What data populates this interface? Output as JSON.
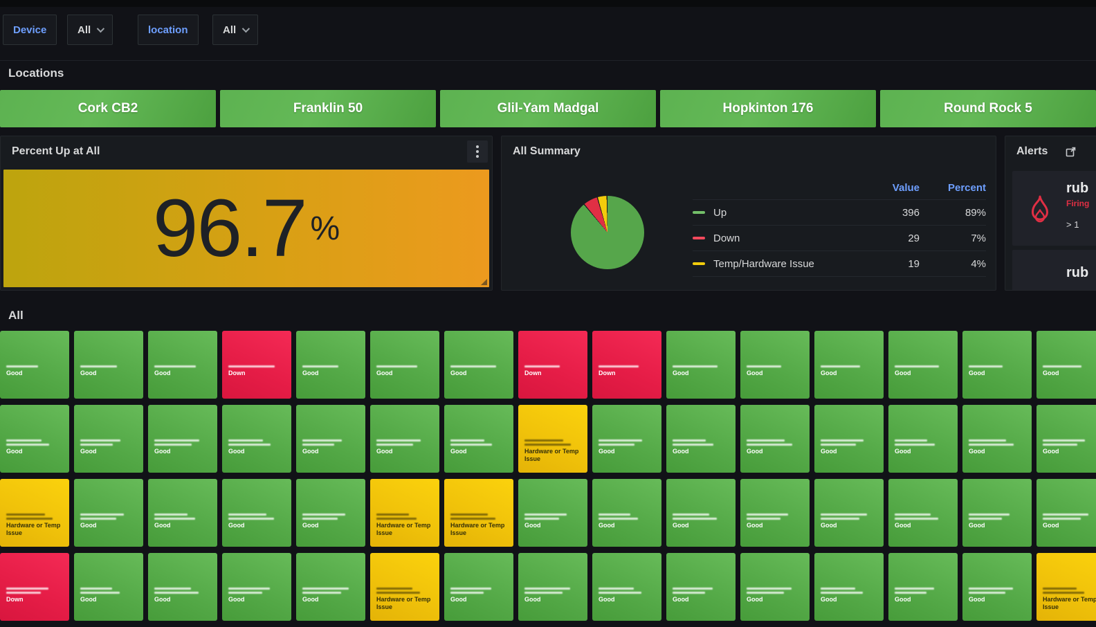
{
  "variables": {
    "device": {
      "label": "Device",
      "value": "All"
    },
    "location": {
      "label": "location",
      "value": "All"
    }
  },
  "sections": {
    "locations_title": "Locations",
    "all_title": "All"
  },
  "location_buttons": [
    "Cork CB2",
    "Franklin 50",
    "Glil-Yam Madgal",
    "Hopkinton 176",
    "Round Rock 5"
  ],
  "panels": {
    "percent_up": {
      "title": "Percent Up at All",
      "value": "96.7",
      "unit": "%"
    },
    "summary": {
      "title": "All Summary",
      "columns": {
        "value": "Value",
        "percent": "Percent"
      },
      "rows": [
        {
          "label": "Up",
          "value": "396",
          "percent": "89%",
          "color": "#73bf69"
        },
        {
          "label": "Down",
          "value": "29",
          "percent": "7%",
          "color": "#f2495c"
        },
        {
          "label": "Temp/Hardware Issue",
          "value": "19",
          "percent": "4%",
          "color": "#f2cc0c"
        }
      ]
    },
    "alerts": {
      "title": "Alerts",
      "items": [
        {
          "name": "rub",
          "state": "Firing",
          "detail": "> 1"
        },
        {
          "name": "rub",
          "state": "",
          "detail": ""
        }
      ]
    }
  },
  "grid": {
    "legend": {
      "G": "Good",
      "D": "Down",
      "Y": "Hardware or Temp Issue"
    },
    "status_colors": {
      "G": "#56a64b",
      "D": "#e02f44",
      "Y": "#f2cc0c"
    },
    "rows": [
      [
        "G",
        "G",
        "G",
        "D",
        "G",
        "G",
        "G",
        "D",
        "D",
        "G",
        "G",
        "G",
        "G",
        "G",
        "G"
      ],
      [
        "G",
        "G",
        "G",
        "G",
        "G",
        "G",
        "G",
        "Y",
        "G",
        "G",
        "G",
        "G",
        "G",
        "G",
        "G"
      ],
      [
        "Y",
        "G",
        "G",
        "G",
        "G",
        "Y",
        "Y",
        "G",
        "G",
        "G",
        "G",
        "G",
        "G",
        "G",
        "G"
      ],
      [
        "D",
        "G",
        "G",
        "G",
        "G",
        "Y",
        "G",
        "G",
        "G",
        "G",
        "G",
        "G",
        "G",
        "G",
        "Y"
      ]
    ]
  },
  "chart_data": [
    {
      "type": "pie",
      "title": "All Summary",
      "categories": [
        "Up",
        "Down",
        "Temp/Hardware Issue"
      ],
      "values": [
        396,
        29,
        19
      ],
      "percents": [
        89,
        7,
        4
      ],
      "colors": [
        "#56a64b",
        "#e02f44",
        "#f2cc0c"
      ],
      "legend_position": "right"
    },
    {
      "type": "stat",
      "title": "Percent Up at All",
      "value": 96.7,
      "unit": "%",
      "background": "yellow-to-orange gradient"
    }
  ]
}
